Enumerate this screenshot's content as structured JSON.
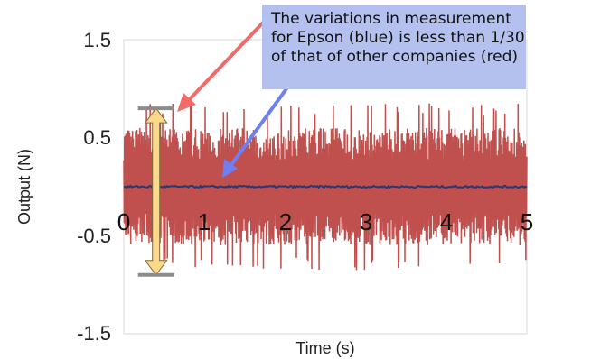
{
  "chart_data": {
    "type": "line",
    "title": "",
    "xlabel": "Time (s)",
    "ylabel": "Output (N)",
    "xlim": [
      0,
      5
    ],
    "ylim": [
      -1.5,
      1.5
    ],
    "x_ticks": [
      "0",
      "1",
      "2",
      "3",
      "4",
      "5"
    ],
    "y_ticks": [
      "1.5",
      "0.5",
      "-0.5",
      "-1.5"
    ],
    "grid": false,
    "legend": "none",
    "series": [
      {
        "name": "other companies (red)",
        "color": "#c0504d",
        "amplitude_typical": 0.6,
        "amplitude_peak": 0.85,
        "mean": 0.0
      },
      {
        "name": "Epson (blue)",
        "color": "#1f3c78",
        "amplitude_typical": 0.01,
        "mean": 0.0
      }
    ],
    "annotation": {
      "lines": [
        "The variations in measurement",
        "for Epson (blue) is less than 1/30",
        "of that of other companies (red)"
      ],
      "background": "#b4c0ee",
      "red_arrow_color": "#f36a6a",
      "blue_arrow_color": "#6d7ff2",
      "range_marker": {
        "x": 0.4,
        "y_top": 0.8,
        "y_bottom": -0.9,
        "fill": "#fcd98a"
      }
    }
  }
}
